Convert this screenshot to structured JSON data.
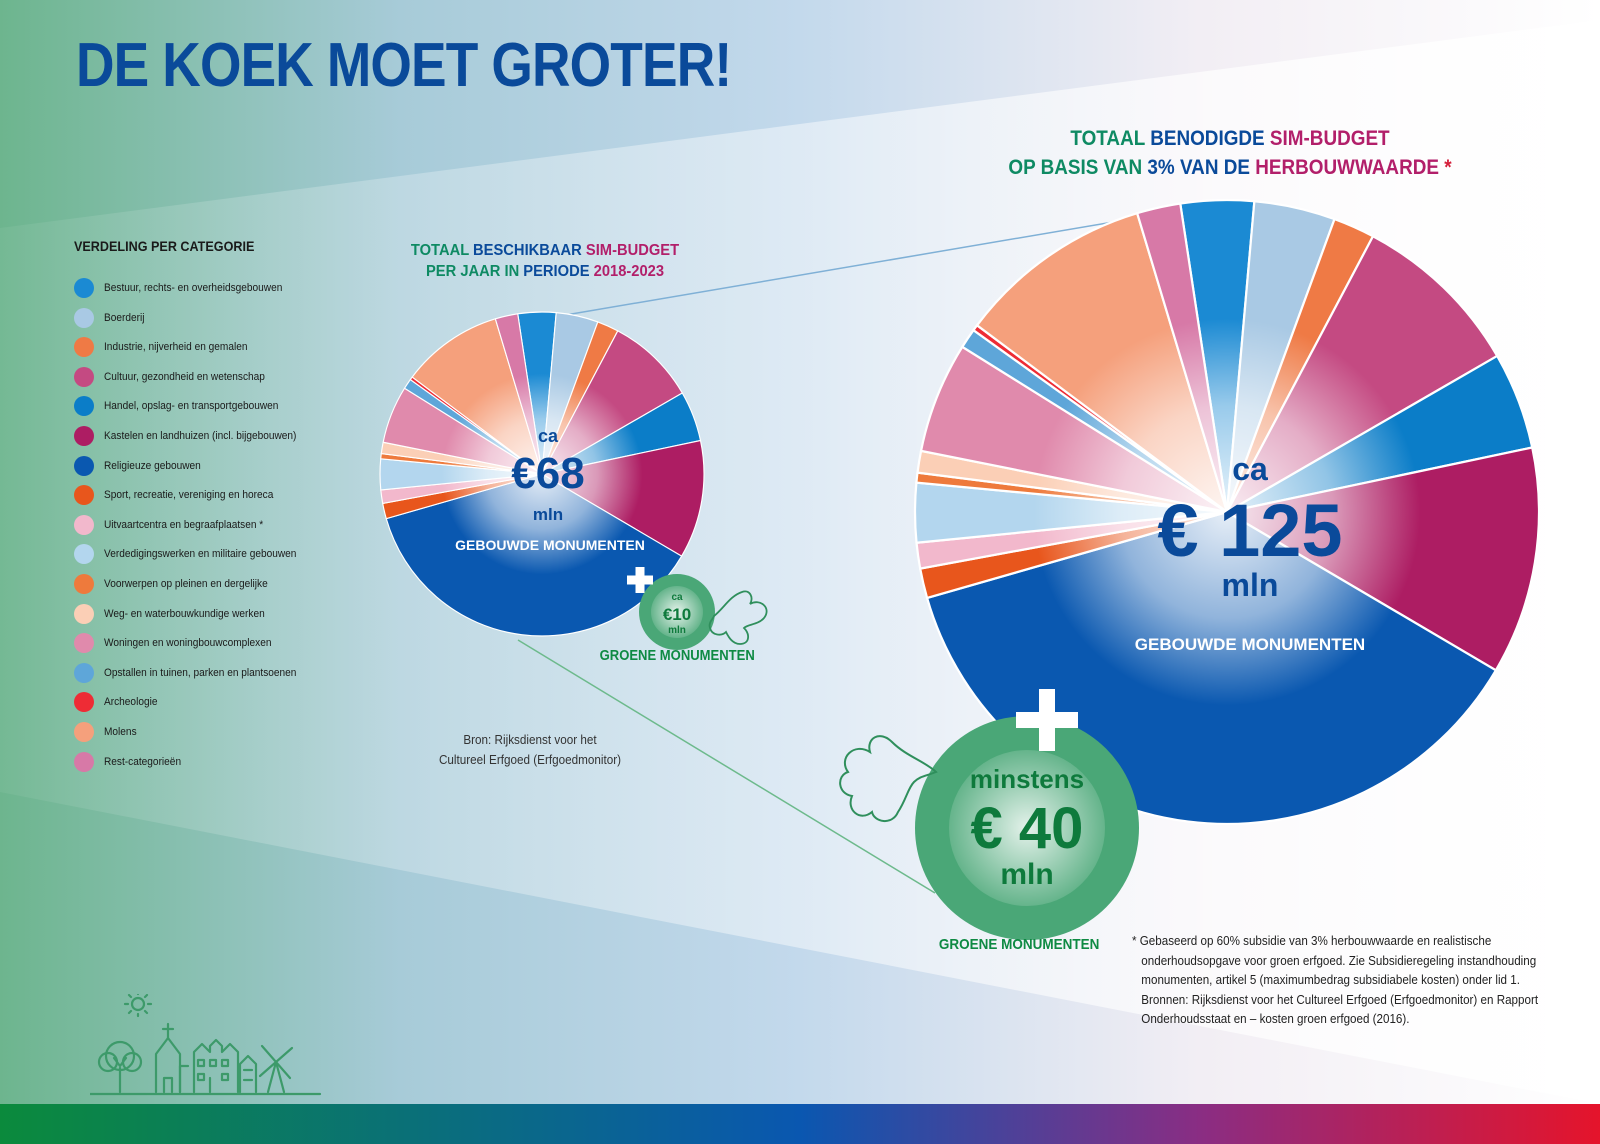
{
  "title": "DE KOEK MOET GROTER!",
  "legend": {
    "title": "VERDELING PER CATEGORIE",
    "items": [
      {
        "label": "Bestuur, rechts- en overheidsgebouwen",
        "color": "#1b8ad3"
      },
      {
        "label": "Boerderij",
        "color": "#a9c9e4"
      },
      {
        "label": "Industrie, nijverheid en gemalen",
        "color": "#ef7a45"
      },
      {
        "label": "Cultuur, gezondheid en wetenschap",
        "color": "#c44a82"
      },
      {
        "label": "Handel, opslag- en transportgebouwen",
        "color": "#0b7dc8"
      },
      {
        "label": "Kastelen en landhuizen (incl. bijgebouwen)",
        "color": "#ad1d63"
      },
      {
        "label": "Religieuze gebouwen",
        "color": "#0a58b0"
      },
      {
        "label": "Sport, recreatie, vereniging en horeca",
        "color": "#e8561c"
      },
      {
        "label": "Uitvaartcentra en begraafplaatsen *",
        "color": "#f2b8cc"
      },
      {
        "label": "Verdedigingswerken en militaire gebouwen",
        "color": "#b3d6ee"
      },
      {
        "label": "Voorwerpen op pleinen en dergelijke",
        "color": "#ee7a3c"
      },
      {
        "label": "Weg- en waterbouwkundige werken",
        "color": "#fbcfb6"
      },
      {
        "label": "Woningen en woningbouwcomplexen",
        "color": "#e08aac"
      },
      {
        "label": "Opstallen in tuinen, parken en plantsoenen",
        "color": "#5ea6d9"
      },
      {
        "label": "Archeologie",
        "color": "#ee2c35"
      },
      {
        "label": "Molens",
        "color": "#f5a07c"
      },
      {
        "label": "Rest-categorieën",
        "color": "#d779a7"
      }
    ]
  },
  "small_chart": {
    "heading_line1": {
      "a": "TOTAAL ",
      "b": "BESCHIKBAAR ",
      "c": "SIM-BUDGET"
    },
    "heading_line2": {
      "a": "PER JAAR IN ",
      "b": "PERIODE ",
      "c": "2018-2023"
    },
    "center_ca": "ca",
    "center_value": "€68",
    "center_unit": "mln",
    "center_label": "GEBOUWDE MONUMENTEN",
    "green_ca": "ca",
    "green_value": "€10",
    "green_unit": "mln",
    "green_label": "GROENE MONUMENTEN",
    "source_line1": "Bron: Rijksdienst voor het",
    "source_line2": "Cultureel Erfgoed (Erfgoedmonitor)"
  },
  "large_chart": {
    "heading_line1": {
      "a": "TOTAAL ",
      "b": "BENODIGDE ",
      "c": "SIM-BUDGET"
    },
    "heading_line2": {
      "a": "OP BASIS VAN ",
      "b": "3% VAN DE ",
      "c": "HERBOUWWAARDE",
      "d": " *"
    },
    "center_ca": "ca",
    "center_value": "€ 125",
    "center_unit": "mln",
    "center_label": "GEBOUWDE MONUMENTEN",
    "green_prefix": "minstens",
    "green_value": "€ 40",
    "green_unit": "mln",
    "green_label": "GROENE MONUMENTEN"
  },
  "footnote": {
    "line1": "* Gebaseerd op 60% subsidie van 3% herbouwwaarde en realistische onderhoudsopgave voor groen erfgoed. Zie Subsidieregeling instandhouding monumenten, artikel 5 (maximumbedrag subsidiabele kosten) onder lid 1.",
    "line2": "Bronnen: Rijksdienst voor het Cultureel Erfgoed (Erfgoedmonitor) en Rapport Onderhoudsstaat en – kosten groen erfgoed (2016)."
  },
  "chart_data": {
    "type": "pie",
    "categories": [
      "Bestuur, rechts- en overheidsgebouwen",
      "Boerderij",
      "Industrie, nijverheid en gemalen",
      "Cultuur, gezondheid en wetenschap",
      "Handel, opslag- en transportgebouwen",
      "Kastelen en landhuizen (incl. bijgebouwen)",
      "Religieuze gebouwen",
      "Sport, recreatie, vereniging en horeca",
      "Uitvaartcentra en begraafplaatsen *",
      "Verdedigingswerken en militaire gebouwen",
      "Voorwerpen op pleinen en dergelijke",
      "Weg- en waterbouwkundige werken",
      "Woningen en woningbouwcomplexen",
      "Opstallen in tuinen, parken en plantsoenen",
      "Archeologie",
      "Molens",
      "Rest-categorieën"
    ],
    "series": [
      {
        "values": [
          3.7,
          4.1,
          2.1,
          8.7,
          4.9,
          11.5,
          36.2,
          1.5,
          1.3,
          3.0,
          0.5,
          1.1,
          5.6,
          1.0,
          0.3,
          9.9,
          2.2
        ]
      }
    ],
    "value_unit": "% of budget"
  }
}
